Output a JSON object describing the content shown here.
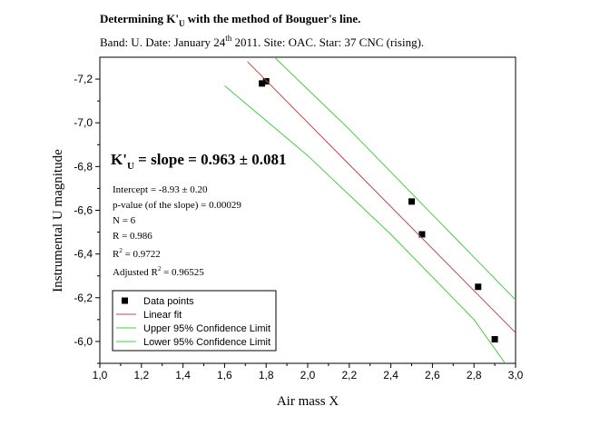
{
  "title": {
    "main": "Determining K'",
    "main_sub": "U",
    "main_rest": " with the method of Bouguer's line.",
    "band_date": "Band: U.  Date: January 24",
    "date_sup": "th",
    "year_site_star": " 2011.  Site: OAC.  Star: 37 CNC (rising)."
  },
  "annotations": {
    "slope_k": "K'",
    "slope_sub": "U",
    "slope_rest": " = slope = 0.963 ± 0.081",
    "intercept": "Intercept = -8.93 ± 0.20",
    "pvalue": "p-value (of the slope) = 0.00029",
    "n": "N = 6",
    "r": "R = 0.986",
    "r2_a": "R",
    "r2_sup": "2",
    "r2_b": " = 0.9722",
    "adjr2_a": "Adjusted R",
    "adjr2_sup": "2",
    "adjr2_b": " = 0.96525"
  },
  "chart_data": {
    "type": "scatter",
    "xlabel": "Air mass  X",
    "ylabel": "Instrumental  U  magnitude",
    "xlim": [
      1.0,
      3.0
    ],
    "ylim": [
      -5.9,
      -7.3
    ],
    "y_inverted": true,
    "x_ticks": [
      "1,0",
      "1,2",
      "1,4",
      "1,6",
      "1,8",
      "2,0",
      "2,2",
      "2,4",
      "2,6",
      "2,8",
      "3,0"
    ],
    "x_tick_values": [
      1.0,
      1.2,
      1.4,
      1.6,
      1.8,
      2.0,
      2.2,
      2.4,
      2.6,
      2.8,
      3.0
    ],
    "y_ticks": [
      "-6,0",
      "-6,2",
      "-6,4",
      "-6,6",
      "-6,8",
      "-7,0",
      "-7,2"
    ],
    "y_tick_values": [
      -6.0,
      -6.2,
      -6.4,
      -6.6,
      -6.8,
      -7.0,
      -7.2
    ],
    "grid": false,
    "legend_position": "bottom-left",
    "series": [
      {
        "name": "Data points",
        "kind": "points",
        "color": "#000000",
        "x": [
          1.78,
          1.8,
          2.5,
          2.55,
          2.82,
          2.9
        ],
        "y": [
          -7.18,
          -7.19,
          -6.64,
          -6.49,
          -6.25,
          -6.01
        ]
      },
      {
        "name": "Linear fit",
        "kind": "line",
        "color": "#cc4444",
        "x": [
          1.71,
          3.0
        ],
        "y": [
          -7.28,
          -6.04
        ]
      },
      {
        "name": "Upper 95% Confidence Limit",
        "kind": "line",
        "color": "#44cc44",
        "x": [
          1.84,
          2.2,
          2.6,
          3.0
        ],
        "y": [
          -7.3,
          -6.97,
          -6.58,
          -6.19
        ]
      },
      {
        "name": "Lower 95% Confidence Limit",
        "kind": "line",
        "color": "#44cc44",
        "x": [
          1.6,
          2.0,
          2.4,
          2.8,
          2.95
        ],
        "y": [
          -7.17,
          -6.85,
          -6.49,
          -6.1,
          -5.9
        ]
      }
    ]
  }
}
